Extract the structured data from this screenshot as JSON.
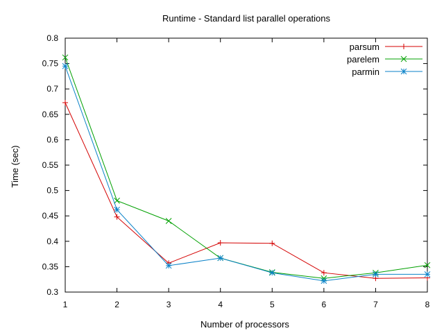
{
  "chart_data": {
    "type": "line",
    "title": "Runtime - Standard list parallel operations",
    "xlabel": "Number of processors",
    "ylabel": "Time (sec)",
    "x": [
      1,
      2,
      3,
      4,
      5,
      6,
      7,
      8
    ],
    "xlim": [
      1,
      8
    ],
    "ylim": [
      0.3,
      0.8
    ],
    "x_ticks": [
      1,
      2,
      3,
      4,
      5,
      6,
      7,
      8
    ],
    "y_ticks": [
      0.3,
      0.35,
      0.4,
      0.45,
      0.5,
      0.55,
      0.6,
      0.65,
      0.7,
      0.75,
      0.8
    ],
    "y_tick_labels": [
      "0.3",
      "0.35",
      "0.4",
      "0.45",
      "0.5",
      "0.55",
      "0.6",
      "0.65",
      "0.7",
      "0.75",
      "0.8"
    ],
    "grid": false,
    "legend_position": "top-right",
    "series": [
      {
        "name": "parsum",
        "color": "#d40000",
        "marker": "plus",
        "values": [
          0.673,
          0.448,
          0.357,
          0.397,
          0.396,
          0.338,
          0.327,
          0.328
        ]
      },
      {
        "name": "parelem",
        "color": "#00a000",
        "marker": "cross",
        "values": [
          0.762,
          0.48,
          0.44,
          0.367,
          0.339,
          0.327,
          0.338,
          0.353
        ]
      },
      {
        "name": "parmin",
        "color": "#0a82c8",
        "marker": "star",
        "values": [
          0.745,
          0.462,
          0.352,
          0.367,
          0.338,
          0.322,
          0.335,
          0.335
        ]
      }
    ]
  }
}
